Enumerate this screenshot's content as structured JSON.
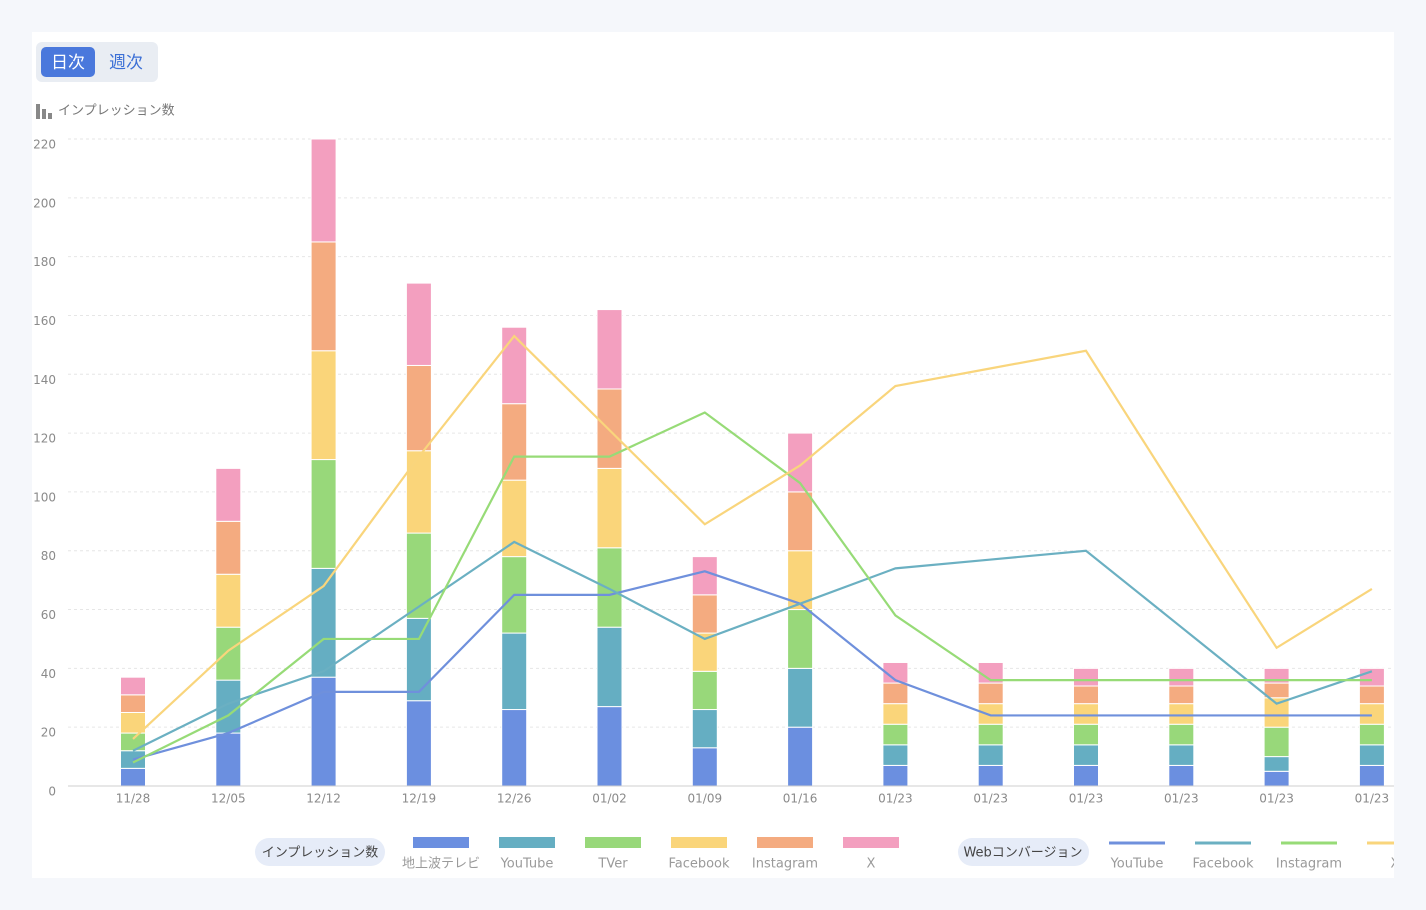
{
  "controls": {
    "tabs": [
      "日次",
      "週次"
    ]
  },
  "chart_data": {
    "type": "stacked-bar-line",
    "y_label": "インプレッション数",
    "bar_legend_title": "インプレッション数",
    "line_legend_title": "Webコンバージョン",
    "categories": [
      "11/28",
      "12/05",
      "12/12",
      "12/19",
      "12/26",
      "01/02",
      "01/09",
      "01/16",
      "01/23",
      "01/23",
      "01/23",
      "01/23",
      "01/23",
      "01/23"
    ],
    "ylim": [
      0,
      220
    ],
    "yticks": [
      0,
      20,
      40,
      60,
      80,
      100,
      120,
      140,
      160,
      180,
      200,
      220
    ],
    "grid": true,
    "series": [
      {
        "name": "地上波テレビ",
        "color": "#6b8fe0",
        "values": [
          6,
          18,
          37,
          29,
          26,
          27,
          13,
          20,
          7,
          7,
          7,
          7,
          5,
          7
        ]
      },
      {
        "name": "YouTube",
        "color": "#65aec2",
        "values": [
          6,
          18,
          37,
          28,
          26,
          27,
          13,
          20,
          7,
          7,
          7,
          7,
          5,
          7
        ]
      },
      {
        "name": "TVer",
        "color": "#98d87a",
        "values": [
          6,
          18,
          37,
          29,
          26,
          27,
          13,
          20,
          7,
          7,
          7,
          7,
          10,
          7
        ]
      },
      {
        "name": "Facebook",
        "color": "#fad57a",
        "values": [
          7,
          18,
          37,
          28,
          26,
          27,
          13,
          20,
          7,
          7,
          7,
          7,
          10,
          7
        ]
      },
      {
        "name": "Instagram",
        "color": "#f4ab80",
        "values": [
          6,
          18,
          37,
          29,
          26,
          27,
          13,
          20,
          7,
          7,
          6,
          6,
          5,
          6
        ]
      },
      {
        "name": "X",
        "color": "#f39fbf",
        "values": [
          6,
          18,
          35,
          28,
          26,
          27,
          13,
          20,
          7,
          7,
          6,
          6,
          5,
          6
        ]
      }
    ],
    "lines": [
      {
        "name": "YouTube",
        "color": "#6f90dc",
        "values": [
          9,
          18,
          32,
          32,
          65,
          65,
          73,
          62,
          36,
          24,
          24,
          24,
          24,
          24
        ]
      },
      {
        "name": "Facebook",
        "color": "#6bb0c2",
        "values": [
          12,
          28,
          39,
          61,
          83,
          67,
          50,
          62,
          74,
          77,
          80,
          54,
          28,
          39
        ]
      },
      {
        "name": "Instagram",
        "color": "#97db77",
        "values": [
          8,
          24,
          50,
          50,
          112,
          112,
          127,
          103,
          58,
          36,
          36,
          36,
          36,
          36
        ]
      },
      {
        "name": "X",
        "color": "#f9d57c",
        "values": [
          16,
          46,
          68,
          112,
          153,
          121,
          89,
          109,
          136,
          142,
          148,
          97,
          47,
          67
        ]
      }
    ]
  }
}
